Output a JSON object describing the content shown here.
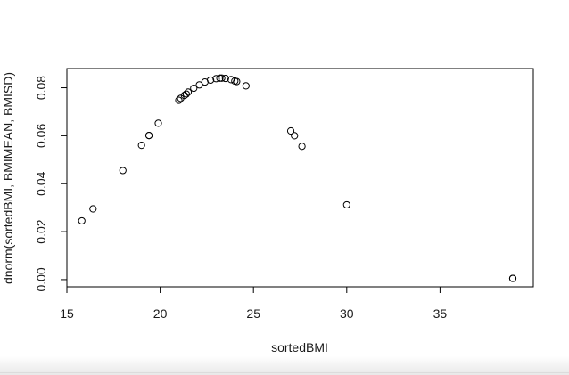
{
  "chart_data": {
    "type": "scatter",
    "title": "",
    "xlabel": "sortedBMI",
    "ylabel": "dnorm(sortedBMI, BMIMEAN, BMISD)",
    "xlim": [
      15,
      40
    ],
    "ylim": [
      -0.003,
      0.088
    ],
    "x_ticks": [
      15,
      20,
      25,
      30,
      35
    ],
    "y_ticks": [
      0.0,
      0.02,
      0.04,
      0.06,
      0.08
    ],
    "x_tick_labels": [
      "15",
      "20",
      "25",
      "30",
      "35"
    ],
    "y_tick_labels": [
      "0.00",
      "0.02",
      "0.04",
      "0.06",
      "0.08"
    ],
    "grid": false,
    "legend": "none",
    "marker": "open-circle",
    "color": "#000000",
    "points": [
      {
        "x": 15.8,
        "y": 0.0245
      },
      {
        "x": 16.4,
        "y": 0.0295
      },
      {
        "x": 18.0,
        "y": 0.0455
      },
      {
        "x": 19.0,
        "y": 0.056
      },
      {
        "x": 19.4,
        "y": 0.0601
      },
      {
        "x": 19.4,
        "y": 0.0601
      },
      {
        "x": 19.9,
        "y": 0.0652
      },
      {
        "x": 21.0,
        "y": 0.0748
      },
      {
        "x": 21.1,
        "y": 0.0756
      },
      {
        "x": 21.3,
        "y": 0.0768
      },
      {
        "x": 21.4,
        "y": 0.0774
      },
      {
        "x": 21.5,
        "y": 0.0782
      },
      {
        "x": 21.8,
        "y": 0.0798
      },
      {
        "x": 22.1,
        "y": 0.0812
      },
      {
        "x": 22.4,
        "y": 0.0824
      },
      {
        "x": 22.7,
        "y": 0.0832
      },
      {
        "x": 23.0,
        "y": 0.0838
      },
      {
        "x": 23.2,
        "y": 0.084
      },
      {
        "x": 23.3,
        "y": 0.084
      },
      {
        "x": 23.5,
        "y": 0.0839
      },
      {
        "x": 23.8,
        "y": 0.0834
      },
      {
        "x": 24.0,
        "y": 0.0828
      },
      {
        "x": 24.1,
        "y": 0.0826
      },
      {
        "x": 24.6,
        "y": 0.0808
      },
      {
        "x": 27.0,
        "y": 0.062
      },
      {
        "x": 27.2,
        "y": 0.06
      },
      {
        "x": 27.6,
        "y": 0.0556
      },
      {
        "x": 30.0,
        "y": 0.0312
      },
      {
        "x": 38.9,
        "y": 0.0005
      },
      {
        "x": 38.9,
        "y": 0.0005
      }
    ]
  }
}
